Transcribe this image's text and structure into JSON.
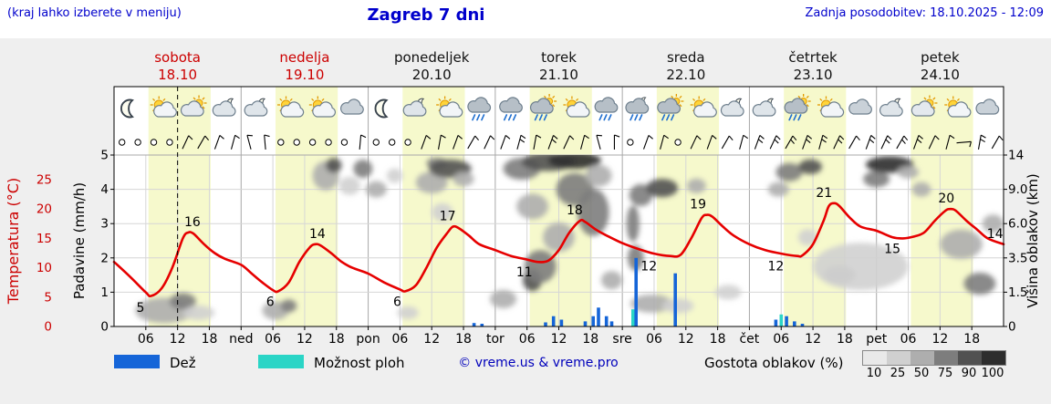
{
  "header": {
    "hint": "(kraj lahko izberete v meniju)",
    "title": "Zagreb 7 dni",
    "updated": "Zadnja posodobitev: 18.10.2025 - 12:09"
  },
  "axes": {
    "left_temp_label": "Temperatura (°C)",
    "left_precip_label": "Padavine (mm/h)",
    "right_label": "Višina oblakov (km)",
    "temp_ticks": [
      0,
      5,
      10,
      15,
      20,
      25
    ],
    "precip_ticks": [
      0,
      1,
      2,
      3,
      4,
      5
    ],
    "cloud_height_ticks": [
      "0",
      "1.5",
      "3.5",
      "6.0",
      "9.0",
      "14"
    ]
  },
  "legend": {
    "rain_label": "Dež",
    "showers_label": "Možnost ploh",
    "copyright": "© vreme.us & vreme.pro",
    "cloud_density_label": "Gostota oblakov (%)",
    "cloud_density_ticks": [
      "10",
      "25",
      "50",
      "75",
      "90",
      "100"
    ]
  },
  "colors": {
    "blue_text": "#0000cc",
    "red_text": "#cc0000",
    "temp_line": "#e60000",
    "day_band": "#f6f9cc",
    "rain_bar": "#1565d8",
    "shower_bar": "#2ad5c6",
    "grid": "#d6d6d6",
    "grid_major": "#a8a8a8",
    "plot_bg": "#ffffff",
    "fig_bg": "#efefef",
    "shade_list": [
      "#e9e9e9",
      "#d0d0d0",
      "#aeaeae",
      "#7d7d7d",
      "#515151",
      "#2d2d2d"
    ]
  },
  "chart_data": {
    "type": "meteogram",
    "location": "Zagreb",
    "hours_total": 168,
    "now_hour": 12,
    "days": [
      {
        "name": "sobota",
        "date": "18.10",
        "color": "#cc0000"
      },
      {
        "name": "nedelja",
        "date": "19.10",
        "color": "#cc0000"
      },
      {
        "name": "ponedeljek",
        "date": "20.10",
        "color": "#111111"
      },
      {
        "name": "torek",
        "date": "21.10",
        "color": "#111111"
      },
      {
        "name": "sreda",
        "date": "22.10",
        "color": "#111111"
      },
      {
        "name": "četrtek",
        "date": "23.10",
        "color": "#111111"
      },
      {
        "name": "petek",
        "date": "24.10",
        "color": "#111111"
      }
    ],
    "hour_labels": [
      "06",
      "12",
      "18"
    ],
    "day_boundary_labels": [
      "ned",
      "pon",
      "tor",
      "sre",
      "čet",
      "pet"
    ],
    "daylight": {
      "start_hour": 6.5,
      "end_hour": 18.25
    },
    "temp_axis": {
      "min": 0,
      "max": 25
    },
    "precip_axis": {
      "min": 0,
      "max": 5
    },
    "cloud_height_axis_km": [
      0,
      1.5,
      3.5,
      6.0,
      9.0,
      14
    ],
    "temperature": {
      "unit": "°C",
      "series": [
        [
          0,
          11
        ],
        [
          3,
          8.5
        ],
        [
          6,
          5.8
        ],
        [
          7,
          5.2
        ],
        [
          9,
          6.5
        ],
        [
          11,
          10
        ],
        [
          13,
          15
        ],
        [
          14,
          16
        ],
        [
          15,
          15.8
        ],
        [
          17,
          14
        ],
        [
          19,
          12.5
        ],
        [
          21,
          11.5
        ],
        [
          24,
          10.5
        ],
        [
          26,
          9
        ],
        [
          28,
          7.5
        ],
        [
          30,
          6.2
        ],
        [
          31,
          6
        ],
        [
          33,
          7.5
        ],
        [
          35,
          11
        ],
        [
          37,
          13.5
        ],
        [
          38,
          14
        ],
        [
          39,
          13.8
        ],
        [
          41,
          12.5
        ],
        [
          43,
          11
        ],
        [
          45,
          10
        ],
        [
          48,
          9
        ],
        [
          51,
          7.5
        ],
        [
          54,
          6.3
        ],
        [
          55,
          6
        ],
        [
          57,
          7
        ],
        [
          59,
          10
        ],
        [
          61,
          13.5
        ],
        [
          63,
          16
        ],
        [
          64,
          17
        ],
        [
          65,
          16.8
        ],
        [
          67,
          15.5
        ],
        [
          69,
          14
        ],
        [
          72,
          13
        ],
        [
          75,
          12
        ],
        [
          78,
          11.4
        ],
        [
          80,
          11
        ],
        [
          82,
          11.2
        ],
        [
          84,
          13
        ],
        [
          86,
          16
        ],
        [
          88,
          18
        ],
        [
          89,
          17.8
        ],
        [
          91,
          16.5
        ],
        [
          93,
          15.5
        ],
        [
          96,
          14.2
        ],
        [
          99,
          13.2
        ],
        [
          102,
          12.4
        ],
        [
          105,
          12
        ],
        [
          107,
          12.2
        ],
        [
          109,
          15
        ],
        [
          111,
          18.5
        ],
        [
          112,
          19
        ],
        [
          113,
          18.7
        ],
        [
          115,
          17
        ],
        [
          117,
          15.5
        ],
        [
          120,
          14
        ],
        [
          123,
          13
        ],
        [
          126,
          12.4
        ],
        [
          129,
          12
        ],
        [
          130,
          12.1
        ],
        [
          132,
          14
        ],
        [
          134,
          18
        ],
        [
          135,
          20.5
        ],
        [
          136,
          21
        ],
        [
          137,
          20.5
        ],
        [
          139,
          18.5
        ],
        [
          141,
          17
        ],
        [
          144,
          16.3
        ],
        [
          147,
          15.2
        ],
        [
          149,
          15
        ],
        [
          151,
          15.3
        ],
        [
          153,
          16
        ],
        [
          155,
          18
        ],
        [
          157,
          19.7
        ],
        [
          158,
          20
        ],
        [
          159,
          19.7
        ],
        [
          161,
          18
        ],
        [
          163,
          16.5
        ],
        [
          165,
          15
        ],
        [
          168,
          14
        ]
      ],
      "labels": [
        {
          "t": 5,
          "v": 5,
          "pos": "below"
        },
        {
          "t": 14.8,
          "v": 16,
          "pos": "above"
        },
        {
          "t": 29.5,
          "v": 6,
          "pos": "below"
        },
        {
          "t": 38.4,
          "v": 14,
          "pos": "above"
        },
        {
          "t": 53.5,
          "v": 6,
          "pos": "below"
        },
        {
          "t": 63,
          "v": 17,
          "pos": "above"
        },
        {
          "t": 77.5,
          "v": 11,
          "pos": "below"
        },
        {
          "t": 87,
          "v": 18,
          "pos": "above"
        },
        {
          "t": 101,
          "v": 12,
          "pos": "below"
        },
        {
          "t": 110.3,
          "v": 19,
          "pos": "above"
        },
        {
          "t": 125,
          "v": 12,
          "pos": "below"
        },
        {
          "t": 134.1,
          "v": 21,
          "pos": "above"
        },
        {
          "t": 147,
          "v": 15,
          "pos": "below"
        },
        {
          "t": 157.2,
          "v": 20,
          "pos": "above"
        },
        {
          "t": 166.4,
          "v": 14,
          "pos": "above"
        }
      ]
    },
    "precip_bars": [
      [
        68,
        0.1,
        "r"
      ],
      [
        69.5,
        0.08,
        "r"
      ],
      [
        81.5,
        0.12,
        "r"
      ],
      [
        83,
        0.3,
        "r"
      ],
      [
        84.5,
        0.2,
        "r"
      ],
      [
        89,
        0.15,
        "r"
      ],
      [
        90.5,
        0.3,
        "r"
      ],
      [
        91.5,
        0.55,
        "r"
      ],
      [
        93,
        0.3,
        "r"
      ],
      [
        94,
        0.15,
        "r"
      ],
      [
        98,
        0.5,
        "s"
      ],
      [
        98.6,
        2.0,
        "r"
      ],
      [
        106,
        1.55,
        "r"
      ],
      [
        125,
        0.2,
        "r"
      ],
      [
        126,
        0.35,
        "s"
      ],
      [
        127,
        0.3,
        "r"
      ],
      [
        128.5,
        0.15,
        "r"
      ],
      [
        130,
        0.08,
        "r"
      ]
    ],
    "weather_icons": [
      {
        "t": 3,
        "type": "moon"
      },
      {
        "t": 9,
        "type": "sun-cloud"
      },
      {
        "t": 15,
        "type": "cloud-sun"
      },
      {
        "t": 21,
        "type": "cloud-moon"
      },
      {
        "t": 27,
        "type": "cloud-moon"
      },
      {
        "t": 33,
        "type": "sun-cloud"
      },
      {
        "t": 39,
        "type": "sun-cloud"
      },
      {
        "t": 45,
        "type": "cloud"
      },
      {
        "t": 51,
        "type": "moon"
      },
      {
        "t": 57,
        "type": "cloud-moon"
      },
      {
        "t": 63,
        "type": "sun-cloud"
      },
      {
        "t": 69,
        "type": "cloud-rain"
      },
      {
        "t": 75,
        "type": "cloud-rain"
      },
      {
        "t": 81,
        "type": "cloud-rain-sun"
      },
      {
        "t": 87,
        "type": "sun-cloud"
      },
      {
        "t": 93,
        "type": "cloud-rain"
      },
      {
        "t": 99,
        "type": "cloud-rain-moon"
      },
      {
        "t": 105,
        "type": "cloud-rain-sun"
      },
      {
        "t": 111,
        "type": "sun-cloud"
      },
      {
        "t": 117,
        "type": "cloud-moon"
      },
      {
        "t": 123,
        "type": "cloud-moon"
      },
      {
        "t": 129,
        "type": "cloud-rain-sun"
      },
      {
        "t": 135,
        "type": "sun-cloud"
      },
      {
        "t": 141,
        "type": "cloud"
      },
      {
        "t": 147,
        "type": "cloud-moon"
      },
      {
        "t": 153,
        "type": "cloud-sun"
      },
      {
        "t": 159,
        "type": "sun-cloud"
      },
      {
        "t": 165,
        "type": "cloud"
      }
    ],
    "wind": [
      [
        1.5,
        null,
        0
      ],
      [
        4.5,
        null,
        0
      ],
      [
        7.5,
        null,
        0
      ],
      [
        10.5,
        null,
        0
      ],
      [
        13.5,
        65,
        1
      ],
      [
        16.5,
        60,
        1
      ],
      [
        19.5,
        70,
        1
      ],
      [
        22.5,
        75,
        1
      ],
      [
        25.5,
        105,
        1
      ],
      [
        28.5,
        95,
        1
      ],
      [
        31.5,
        null,
        0
      ],
      [
        34.5,
        null,
        0
      ],
      [
        37.5,
        null,
        0
      ],
      [
        40.5,
        null,
        0
      ],
      [
        43.5,
        null,
        0
      ],
      [
        46.5,
        85,
        1
      ],
      [
        49.5,
        null,
        0
      ],
      [
        52.5,
        null,
        0
      ],
      [
        55.5,
        null,
        0
      ],
      [
        58.5,
        70,
        1
      ],
      [
        61.5,
        80,
        1
      ],
      [
        64.5,
        70,
        1
      ],
      [
        67.5,
        60,
        1
      ],
      [
        70.5,
        65,
        1
      ],
      [
        73.5,
        70,
        1
      ],
      [
        76.5,
        75,
        2
      ],
      [
        79.5,
        80,
        1
      ],
      [
        82.5,
        70,
        2
      ],
      [
        85.5,
        65,
        1
      ],
      [
        88.5,
        75,
        1
      ],
      [
        91.5,
        105,
        1
      ],
      [
        94.5,
        90,
        1
      ],
      [
        97.5,
        null,
        0
      ],
      [
        100.5,
        70,
        1
      ],
      [
        103.5,
        75,
        1
      ],
      [
        106.5,
        null,
        0
      ],
      [
        109.5,
        65,
        1
      ],
      [
        112.5,
        70,
        1
      ],
      [
        115.5,
        60,
        1
      ],
      [
        118.5,
        75,
        1
      ],
      [
        121.5,
        70,
        2
      ],
      [
        124.5,
        65,
        2
      ],
      [
        127.5,
        60,
        2
      ],
      [
        130.5,
        70,
        2
      ],
      [
        133.5,
        75,
        2
      ],
      [
        136.5,
        65,
        2
      ],
      [
        139.5,
        60,
        1
      ],
      [
        142.5,
        70,
        2
      ],
      [
        145.5,
        65,
        2
      ],
      [
        148.5,
        60,
        2
      ],
      [
        151.5,
        70,
        2
      ],
      [
        154.5,
        65,
        1
      ],
      [
        157.5,
        75,
        1
      ],
      [
        160.5,
        5,
        1
      ],
      [
        163.5,
        80,
        2
      ],
      [
        166.5,
        60,
        1
      ]
    ],
    "cloud_blobs": [
      {
        "t": 9.5,
        "km": 0.7,
        "whr": 5.5,
        "ryp": 14,
        "d": 50
      },
      {
        "t": 13,
        "km": 1.1,
        "whr": 2.5,
        "ryp": 9,
        "d": 75
      },
      {
        "t": 16,
        "km": 0.6,
        "whr": 3,
        "ryp": 8,
        "d": 25
      },
      {
        "t": 30.5,
        "km": 0.7,
        "whr": 2.5,
        "ryp": 10,
        "d": 50
      },
      {
        "t": 33,
        "km": 0.9,
        "whr": 1.5,
        "ryp": 7,
        "d": 75
      },
      {
        "t": 40,
        "km": 11,
        "whr": 2.5,
        "ryp": 16,
        "d": 50
      },
      {
        "t": 41.5,
        "km": 12.5,
        "whr": 1.5,
        "ryp": 8,
        "d": 90
      },
      {
        "t": 44.5,
        "km": 9.5,
        "whr": 2,
        "ryp": 10,
        "d": 25
      },
      {
        "t": 47,
        "km": 12,
        "whr": 1.8,
        "ryp": 10,
        "d": 75
      },
      {
        "t": 49.5,
        "km": 9,
        "whr": 2,
        "ryp": 9,
        "d": 50
      },
      {
        "t": 53,
        "km": 11,
        "whr": 1.5,
        "ryp": 8,
        "d": 25
      },
      {
        "t": 55.5,
        "km": 0.6,
        "whr": 2,
        "ryp": 7,
        "d": 25
      },
      {
        "t": 60,
        "km": 10,
        "whr": 3,
        "ryp": 12,
        "d": 50
      },
      {
        "t": 61,
        "km": 12.8,
        "whr": 2,
        "ryp": 6,
        "d": 75
      },
      {
        "t": 62,
        "km": 7,
        "whr": 2,
        "ryp": 10,
        "d": 25
      },
      {
        "t": 63.5,
        "km": 12,
        "whr": 4,
        "ryp": 10,
        "d": 90
      },
      {
        "t": 66,
        "km": 10.5,
        "whr": 2,
        "ryp": 8,
        "d": 50
      },
      {
        "t": 73.5,
        "km": 1.2,
        "whr": 2.5,
        "ryp": 10,
        "d": 50
      },
      {
        "t": 77,
        "km": 12,
        "whr": 3.5,
        "ryp": 12,
        "d": 75
      },
      {
        "t": 79,
        "km": 7.5,
        "whr": 3,
        "ryp": 14,
        "d": 50
      },
      {
        "t": 79,
        "km": 2.2,
        "whr": 1.8,
        "ryp": 12,
        "d": 90
      },
      {
        "t": 80.5,
        "km": 3,
        "whr": 3,
        "ryp": 18,
        "d": 75
      },
      {
        "t": 82,
        "km": 13,
        "whr": 5,
        "ryp": 10,
        "d": 90
      },
      {
        "t": 84,
        "km": 5,
        "whr": 3,
        "ryp": 16,
        "d": 50
      },
      {
        "t": 87,
        "km": 13.2,
        "whr": 5,
        "ryp": 9,
        "d": 100
      },
      {
        "t": 87,
        "km": 9,
        "whr": 3.5,
        "ryp": 18,
        "d": 75
      },
      {
        "t": 90.5,
        "km": 7,
        "whr": 3,
        "ryp": 26,
        "d": 75
      },
      {
        "t": 91.5,
        "km": 11,
        "whr": 2.5,
        "ryp": 12,
        "d": 50
      },
      {
        "t": 94,
        "km": 2.2,
        "whr": 2,
        "ryp": 10,
        "d": 50
      },
      {
        "t": 98,
        "km": 6,
        "whr": 1.2,
        "ryp": 20,
        "d": 75
      },
      {
        "t": 98.5,
        "km": 3.5,
        "whr": 1.5,
        "ryp": 14,
        "d": 75
      },
      {
        "t": 99.5,
        "km": 8.5,
        "whr": 2.2,
        "ryp": 12,
        "d": 75
      },
      {
        "t": 103.5,
        "km": 9.2,
        "whr": 3,
        "ryp": 10,
        "d": 90
      },
      {
        "t": 101.5,
        "km": 1,
        "whr": 4,
        "ryp": 10,
        "d": 50
      },
      {
        "t": 106.5,
        "km": 0.9,
        "whr": 3,
        "ryp": 8,
        "d": 25
      },
      {
        "t": 110,
        "km": 9.5,
        "whr": 1.8,
        "ryp": 8,
        "d": 50
      },
      {
        "t": 116,
        "km": 1.5,
        "whr": 2.5,
        "ryp": 8,
        "d": 25
      },
      {
        "t": 125.5,
        "km": 9,
        "whr": 2,
        "ryp": 8,
        "d": 50
      },
      {
        "t": 127.5,
        "km": 11.5,
        "whr": 2.5,
        "ryp": 10,
        "d": 75
      },
      {
        "t": 131.5,
        "km": 12.3,
        "whr": 2.2,
        "ryp": 8,
        "d": 90
      },
      {
        "t": 131,
        "km": 5,
        "whr": 1.8,
        "ryp": 9,
        "d": 25
      },
      {
        "t": 137,
        "km": 2.5,
        "whr": 3,
        "ryp": 10,
        "d": 50
      },
      {
        "t": 141,
        "km": 3,
        "whr": 9,
        "ryp": 26,
        "d": 25
      },
      {
        "t": 144,
        "km": 10.5,
        "whr": 2.5,
        "ryp": 9,
        "d": 75
      },
      {
        "t": 146.5,
        "km": 12.6,
        "whr": 4.5,
        "ryp": 9,
        "d": 100
      },
      {
        "t": 150,
        "km": 11.5,
        "whr": 2,
        "ryp": 7,
        "d": 50
      },
      {
        "t": 152.5,
        "km": 9,
        "whr": 1.8,
        "ryp": 8,
        "d": 50
      },
      {
        "t": 160,
        "km": 4.5,
        "whr": 4,
        "ryp": 16,
        "d": 50
      },
      {
        "t": 163.5,
        "km": 2,
        "whr": 3,
        "ryp": 12,
        "d": 75
      },
      {
        "t": 166,
        "km": 6,
        "whr": 2,
        "ryp": 10,
        "d": 50
      }
    ]
  }
}
